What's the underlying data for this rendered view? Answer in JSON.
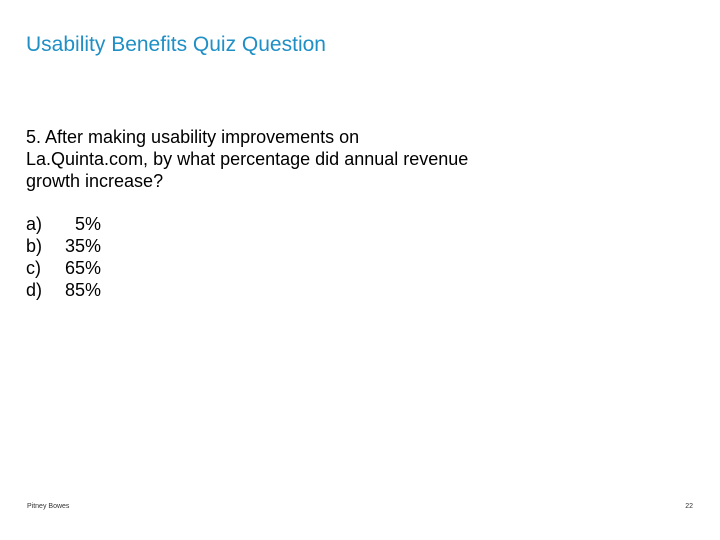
{
  "slide": {
    "title": "Usability Benefits Quiz Question",
    "question_lines": [
      "5. After making usability improvements on",
      "La.Quinta.com, by what percentage did annual revenue",
      "growth increase?"
    ],
    "options": [
      {
        "letter": "a)",
        "value": "5%"
      },
      {
        "letter": "b)",
        "value": "35%"
      },
      {
        "letter": "c)",
        "value": "65%"
      },
      {
        "letter": "d)",
        "value": "85%"
      }
    ]
  },
  "footer": {
    "brand": "Pitney Bowes",
    "page_number": "22"
  },
  "colors": {
    "title": "#1f8fc6",
    "body_text": "#000000",
    "background": "#ffffff"
  }
}
